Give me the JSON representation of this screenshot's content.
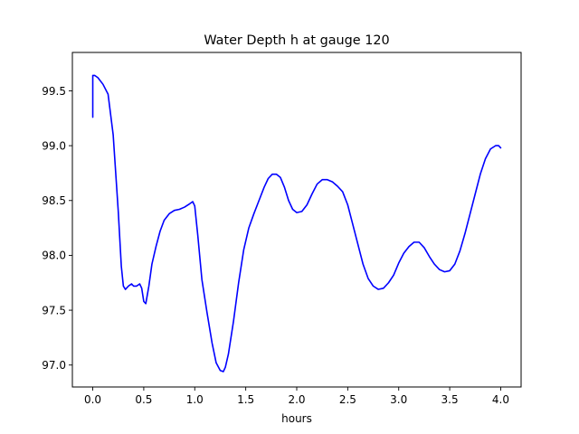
{
  "chart_data": {
    "type": "line",
    "title": "Water Depth h at gauge 120",
    "xlabel": "hours",
    "ylabel": "",
    "xlim": [
      -0.2,
      4.2
    ],
    "ylim": [
      96.8,
      99.85
    ],
    "xticks": [
      0.0,
      0.5,
      1.0,
      1.5,
      2.0,
      2.5,
      3.0,
      3.5,
      4.0
    ],
    "xtick_labels": [
      "0.0",
      "0.5",
      "1.0",
      "1.5",
      "2.0",
      "2.5",
      "3.0",
      "3.5",
      "4.0"
    ],
    "yticks": [
      97.0,
      97.5,
      98.0,
      98.5,
      99.0,
      99.5
    ],
    "ytick_labels": [
      "97.0",
      "97.5",
      "98.0",
      "98.5",
      "99.0",
      "99.5"
    ],
    "grid": false,
    "series": [
      {
        "color": "#0000ff",
        "x": [
          0.0,
          0.0,
          0.02,
          0.05,
          0.1,
          0.15,
          0.2,
          0.25,
          0.28,
          0.3,
          0.32,
          0.35,
          0.38,
          0.4,
          0.43,
          0.46,
          0.48,
          0.5,
          0.52,
          0.55,
          0.58,
          0.62,
          0.66,
          0.7,
          0.75,
          0.8,
          0.85,
          0.9,
          0.95,
          0.98,
          1.0,
          1.03,
          1.07,
          1.12,
          1.17,
          1.21,
          1.25,
          1.28,
          1.3,
          1.33,
          1.38,
          1.43,
          1.48,
          1.53,
          1.58,
          1.63,
          1.68,
          1.72,
          1.76,
          1.8,
          1.84,
          1.88,
          1.92,
          1.96,
          2.0,
          2.05,
          2.1,
          2.15,
          2.2,
          2.25,
          2.3,
          2.35,
          2.4,
          2.45,
          2.5,
          2.55,
          2.6,
          2.65,
          2.7,
          2.75,
          2.8,
          2.85,
          2.9,
          2.95,
          3.0,
          3.05,
          3.1,
          3.15,
          3.2,
          3.25,
          3.3,
          3.35,
          3.4,
          3.45,
          3.5,
          3.55,
          3.6,
          3.65,
          3.7,
          3.75,
          3.8,
          3.85,
          3.9,
          3.95,
          3.98,
          4.0
        ],
        "y": [
          99.26,
          99.64,
          99.64,
          99.62,
          99.56,
          99.47,
          99.1,
          98.4,
          97.9,
          97.72,
          97.69,
          97.72,
          97.74,
          97.72,
          97.72,
          97.74,
          97.7,
          97.58,
          97.56,
          97.72,
          97.92,
          98.08,
          98.22,
          98.32,
          98.38,
          98.41,
          98.42,
          98.44,
          98.47,
          98.49,
          98.45,
          98.18,
          97.78,
          97.48,
          97.2,
          97.02,
          96.95,
          96.94,
          96.98,
          97.1,
          97.4,
          97.75,
          98.05,
          98.25,
          98.38,
          98.5,
          98.62,
          98.7,
          98.74,
          98.74,
          98.71,
          98.62,
          98.5,
          98.42,
          98.39,
          98.4,
          98.46,
          98.56,
          98.65,
          98.69,
          98.69,
          98.67,
          98.63,
          98.58,
          98.46,
          98.28,
          98.1,
          97.92,
          97.79,
          97.72,
          97.69,
          97.7,
          97.75,
          97.82,
          97.93,
          98.02,
          98.08,
          98.12,
          98.12,
          98.07,
          97.99,
          97.92,
          97.87,
          97.85,
          97.86,
          97.92,
          98.04,
          98.2,
          98.38,
          98.56,
          98.74,
          98.88,
          98.97,
          99.0,
          99.0,
          98.98
        ]
      }
    ]
  }
}
